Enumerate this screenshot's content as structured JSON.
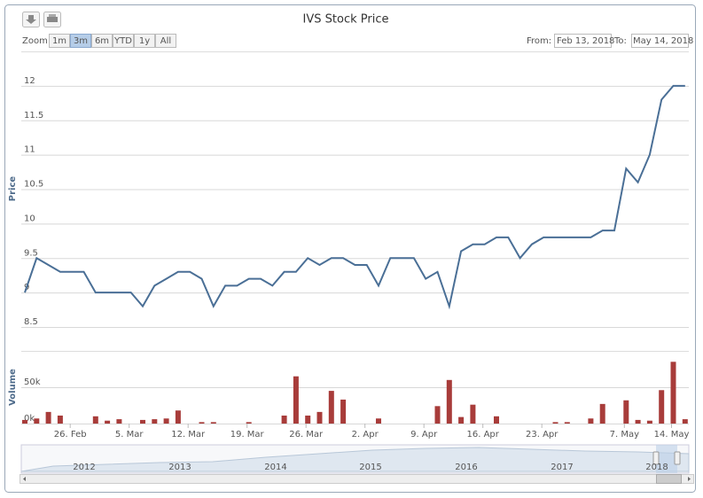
{
  "toolbar": {
    "zoom_label": "Zoom",
    "buttons": [
      "1m",
      "3m",
      "6m",
      "YTD",
      "1y",
      "All"
    ],
    "active_button": 1,
    "from_label": "From:",
    "from": "Feb 13, 2018",
    "to_label": "To:",
    "to": "May 14, 2018"
  },
  "chart_data": [
    {
      "type": "line",
      "title": "IVS Stock Price",
      "ylabel": "Price",
      "color": "#4a6f96",
      "grid": true,
      "categories": [
        null,
        null,
        null,
        null,
        "26. Feb",
        null,
        null,
        null,
        null,
        "5. Mar",
        null,
        null,
        null,
        null,
        "12. Mar",
        null,
        null,
        null,
        null,
        "19. Mar",
        null,
        null,
        null,
        null,
        "26. Mar",
        null,
        null,
        null,
        null,
        "2. Apr",
        null,
        null,
        null,
        null,
        "9. Apr",
        null,
        null,
        null,
        null,
        "16. Apr",
        null,
        null,
        null,
        null,
        "23. Apr",
        null,
        null,
        null,
        null,
        null,
        null,
        "7. May",
        null,
        null,
        null,
        "14. May",
        null
      ],
      "values": [
        9.0,
        9.5,
        9.4,
        9.3,
        9.3,
        9.3,
        9.0,
        9.0,
        9.0,
        9.0,
        8.8,
        9.1,
        9.2,
        9.3,
        9.3,
        9.2,
        8.8,
        9.1,
        9.1,
        9.2,
        9.2,
        9.1,
        9.3,
        9.3,
        9.5,
        9.4,
        9.5,
        9.5,
        9.4,
        9.4,
        9.1,
        9.5,
        9.5,
        9.5,
        9.2,
        9.3,
        8.8,
        9.6,
        9.7,
        9.7,
        9.8,
        9.8,
        9.5,
        9.7,
        9.8,
        9.8,
        9.8,
        9.8,
        9.8,
        9.9,
        9.9,
        10.8,
        10.6,
        11.0,
        11.8,
        12.0,
        12.0
      ],
      "ylim": [
        8.5,
        12.5
      ],
      "yticks": [
        8.5,
        9,
        9.5,
        10,
        10.5,
        11,
        11.5,
        12
      ]
    },
    {
      "type": "bar",
      "ylabel": "Volume",
      "color": "#a83c3a",
      "grid": true,
      "values": [
        5000,
        7000,
        16000,
        11000,
        0,
        0,
        10000,
        4000,
        6000,
        0,
        5000,
        6000,
        7000,
        18000,
        0,
        2000,
        2000,
        0,
        0,
        2000,
        0,
        0,
        11000,
        65000,
        11000,
        16000,
        45000,
        33000,
        0,
        0,
        7000,
        0,
        0,
        0,
        0,
        24000,
        60000,
        9000,
        26000,
        0,
        10000,
        0,
        0,
        0,
        0,
        2000,
        2000,
        0,
        7000,
        27000,
        0,
        32000,
        5000,
        4000,
        46000,
        85000,
        6000
      ],
      "ylim": [
        0,
        100000
      ],
      "yticks": [
        {
          "value": 0,
          "label": "0k"
        },
        {
          "value": 50000,
          "label": "50k"
        }
      ]
    }
  ],
  "navigator": {
    "labels": [
      "2012",
      "2013",
      "2014",
      "2015",
      "2016",
      "2017",
      "2018"
    ]
  }
}
